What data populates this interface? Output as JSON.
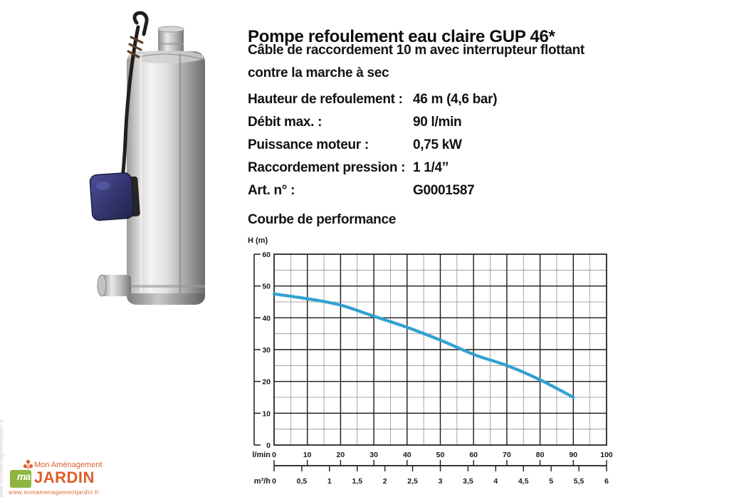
{
  "product": {
    "title": "Pompe refoulement eau claire GUP 46*",
    "description_line1": "Câble de raccordement 10 m avec interrupteur flottant",
    "description_line2": "contre la marche à sec",
    "specs": [
      {
        "label": "Hauteur de refoulement :",
        "value": "46 m (4,6 bar)"
      },
      {
        "label": "Débit max. :",
        "value": "90 l/min"
      },
      {
        "label": "Puissance moteur :",
        "value": "0,75 kW"
      },
      {
        "label": "Raccordement pression :",
        "value": "1 1/4’’"
      },
      {
        "label": "Art. n° :",
        "value": "G0001587"
      }
    ]
  },
  "chart_data": {
    "type": "line",
    "title": "Courbe de performance",
    "ylabel": "H (m)",
    "x_axis_primary_label": "l/min",
    "x_axis_secondary_label": "m³/h",
    "x": [
      0,
      10,
      20,
      30,
      40,
      50,
      60,
      70,
      80,
      90
    ],
    "y": [
      47.5,
      46,
      44,
      40.5,
      37,
      33,
      28.5,
      25,
      20.5,
      15
    ],
    "xlim": [
      0,
      100
    ],
    "ylim": [
      0,
      60
    ],
    "x_major_step": 10,
    "x_minor_step": 5,
    "y_major_step": 10,
    "y_minor_step": 5,
    "grid": true,
    "legend": "none",
    "y_tick_labels": [
      "0",
      "10",
      "20",
      "30",
      "40",
      "50",
      "60"
    ],
    "x_tick_labels_lmin": [
      "0",
      "10",
      "20",
      "30",
      "40",
      "50",
      "60",
      "70",
      "80",
      "90",
      "100"
    ],
    "x_tick_labels_m3h": [
      "0",
      "0,5",
      "1",
      "1,5",
      "2",
      "2,5",
      "3",
      "3,5",
      "4",
      "4,5",
      "5",
      "5,5",
      "6"
    ],
    "line_color": "#33a2cf",
    "major_grid_color": "#1a1a1a",
    "minor_grid_color": "#8f8f8f"
  },
  "logo": {
    "brand_top": "Mon Aménagement",
    "brand_main": "JARDIN",
    "monogram": "ma",
    "url": "www.monamenagementjardin.fr",
    "watermark_vertical": "www.monamenagementjardin.fr",
    "orange": "#dd5f2b",
    "green": "#8db53f"
  }
}
